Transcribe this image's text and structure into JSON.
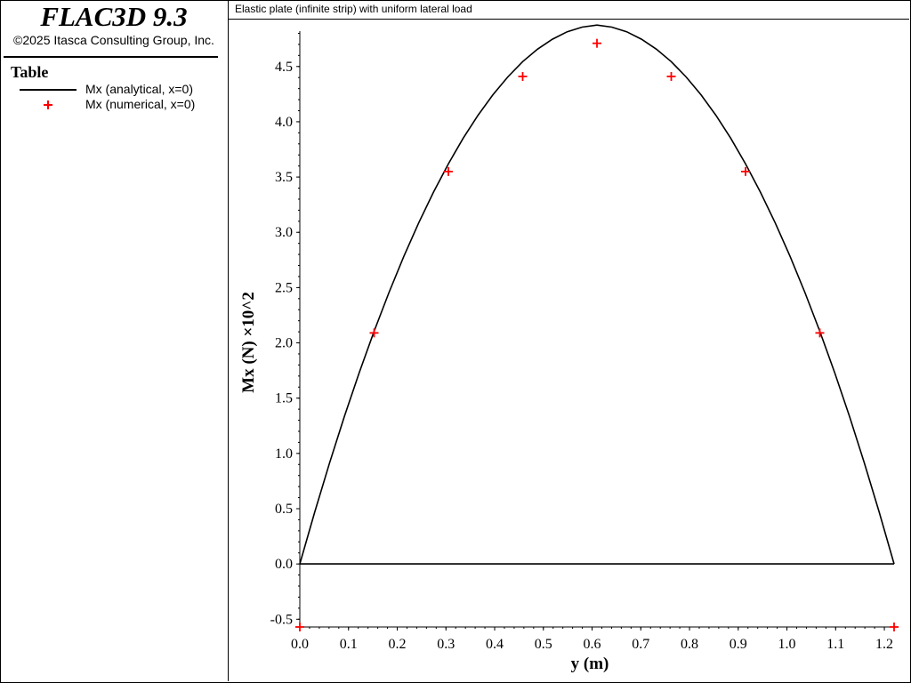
{
  "app": {
    "title": "FLAC3D 9.3",
    "copyright": "©2025 Itasca Consulting Group, Inc."
  },
  "legend": {
    "title": "Table",
    "items": [
      {
        "label": "Mx (analytical, x=0)",
        "style": "line",
        "color": "#000000"
      },
      {
        "label": "Mx (numerical, x=0)",
        "style": "plus-marker",
        "color": "#ff0000"
      }
    ]
  },
  "plot": {
    "title": "Elastic plate (infinite strip) with uniform lateral load"
  },
  "chart_data": {
    "type": "line",
    "xlabel": "y (m)",
    "ylabel": "Mx (N) ×10^2",
    "xlim": [
      0.0,
      1.22
    ],
    "ylim": [
      -0.57,
      4.82
    ],
    "x_ticks": [
      "0.0",
      "0.1",
      "0.2",
      "0.3",
      "0.4",
      "0.5",
      "0.6",
      "0.7",
      "0.8",
      "0.9",
      "1.0",
      "1.1",
      "1.2"
    ],
    "y_ticks": [
      "-0.5",
      "0.0",
      "0.5",
      "1.0",
      "1.5",
      "2.0",
      "2.5",
      "3.0",
      "3.5",
      "4.0",
      "4.5"
    ],
    "grid": false,
    "series": [
      {
        "name": "Mx (analytical, x=0)",
        "kind": "line",
        "color": "#000000",
        "x": [
          0.0,
          0.0305,
          0.061,
          0.0915,
          0.122,
          0.1525,
          0.183,
          0.2135,
          0.244,
          0.2745,
          0.305,
          0.3355,
          0.366,
          0.3965,
          0.427,
          0.4575,
          0.488,
          0.5185,
          0.549,
          0.5795,
          0.61,
          0.6405,
          0.671,
          0.7015,
          0.732,
          0.7625,
          0.793,
          0.8235,
          0.854,
          0.8845,
          0.915,
          0.9455,
          0.976,
          1.0065,
          1.037,
          1.0675,
          1.098,
          1.1285,
          1.159,
          1.1895,
          1.22
        ],
        "y": [
          0.0,
          0.468,
          0.913,
          1.334,
          1.731,
          2.105,
          2.455,
          2.782,
          3.085,
          3.364,
          3.62,
          3.852,
          4.06,
          4.245,
          4.406,
          4.544,
          4.657,
          4.747,
          4.814,
          4.856,
          4.875,
          4.856,
          4.814,
          4.747,
          4.657,
          4.544,
          4.406,
          4.245,
          4.06,
          3.852,
          3.62,
          3.364,
          3.085,
          2.782,
          2.455,
          2.105,
          1.731,
          1.334,
          0.913,
          0.468,
          0.0
        ]
      },
      {
        "name": "Mx (analytical, x=0)",
        "kind": "baseline",
        "color": "#000000",
        "x": [
          0.0,
          1.22
        ],
        "y": [
          0.0,
          0.0
        ]
      },
      {
        "name": "Mx (numerical, x=0)",
        "kind": "marker",
        "color": "#ff0000",
        "x": [
          0.0,
          0.1525,
          0.305,
          0.4575,
          0.61,
          0.7625,
          0.915,
          1.0675,
          1.22
        ],
        "y": [
          -0.57,
          2.09,
          3.55,
          4.41,
          4.71,
          4.41,
          3.55,
          2.09,
          -0.57
        ]
      }
    ]
  }
}
